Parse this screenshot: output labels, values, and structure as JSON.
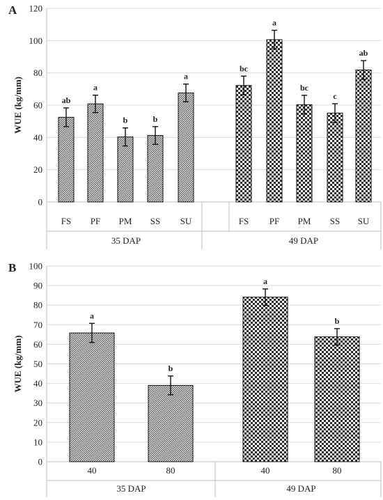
{
  "chart_data": [
    {
      "type": "bar",
      "panel": "A",
      "ylabel": "WUE (kg/mm)",
      "ylim": [
        0,
        120
      ],
      "yticks": [
        0,
        20,
        40,
        60,
        80,
        100,
        120
      ],
      "grid": true,
      "groups": [
        {
          "label": "35 DAP",
          "pattern": "diagonal-hatch",
          "bars": [
            {
              "category": "FS",
              "value": 52.5,
              "error": 5.8,
              "letter": "ab"
            },
            {
              "category": "PF",
              "value": 60.8,
              "error": 5.4,
              "letter": "a"
            },
            {
              "category": "PM",
              "value": 40.3,
              "error": 5.6,
              "letter": "b"
            },
            {
              "category": "SS",
              "value": 41.2,
              "error": 5.5,
              "letter": "b"
            },
            {
              "category": "SU",
              "value": 67.6,
              "error": 5.5,
              "letter": "a"
            }
          ]
        },
        {
          "label": "49 DAP",
          "pattern": "checkerboard",
          "bars": [
            {
              "category": "FS",
              "value": 72.2,
              "error": 5.8,
              "letter": "bc"
            },
            {
              "category": "PF",
              "value": 100.6,
              "error": 5.8,
              "letter": "a"
            },
            {
              "category": "PM",
              "value": 60.3,
              "error": 5.8,
              "letter": "bc"
            },
            {
              "category": "SS",
              "value": 55.1,
              "error": 5.8,
              "letter": "c"
            },
            {
              "category": "SU",
              "value": 81.8,
              "error": 5.8,
              "letter": "ab"
            }
          ]
        }
      ]
    },
    {
      "type": "bar",
      "panel": "B",
      "ylabel": "WUE (kg/mm)",
      "ylim": [
        0,
        100
      ],
      "yticks": [
        0,
        10,
        20,
        30,
        40,
        50,
        60,
        70,
        80,
        90,
        100
      ],
      "grid": true,
      "groups": [
        {
          "label": "35 DAP",
          "pattern": "diagonal-hatch",
          "bars": [
            {
              "category": "40",
              "value": 65.8,
              "error": 4.9,
              "letter": "a"
            },
            {
              "category": "80",
              "value": 39.0,
              "error": 4.8,
              "letter": "b"
            }
          ]
        },
        {
          "label": "49 DAP",
          "pattern": "checkerboard",
          "bars": [
            {
              "category": "40",
              "value": 84.1,
              "error": 4.2,
              "letter": "a"
            },
            {
              "category": "80",
              "value": 63.8,
              "error": 4.2,
              "letter": "b"
            }
          ]
        }
      ]
    }
  ]
}
